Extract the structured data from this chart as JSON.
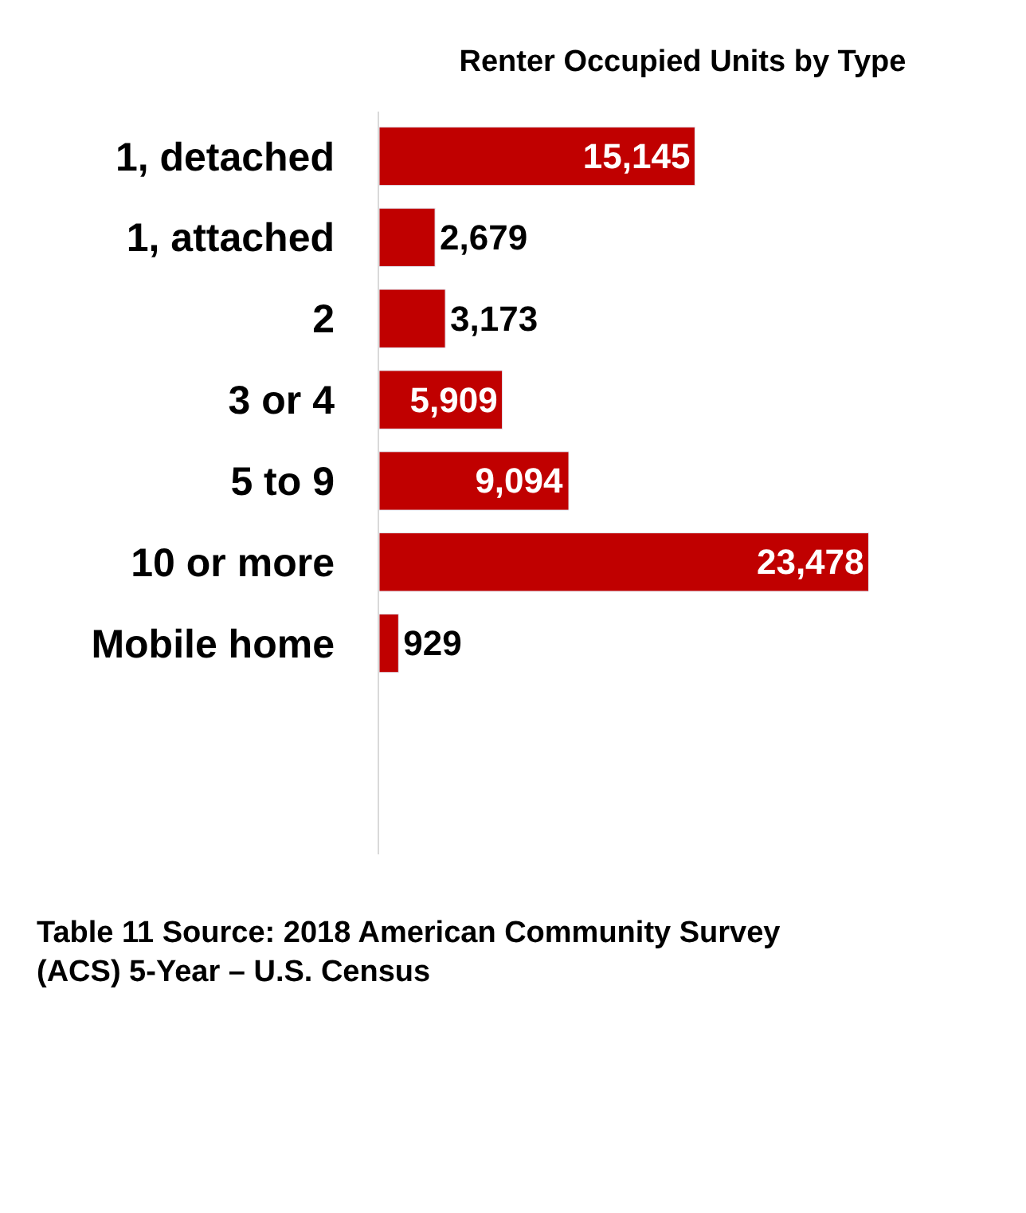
{
  "chart_data": {
    "type": "bar",
    "orientation": "horizontal",
    "title": "Renter Occupied Units by Type",
    "categories": [
      "1, detached",
      "1, attached",
      "2",
      "3 or 4",
      "5 to 9",
      "10 or more",
      "Mobile home"
    ],
    "values": [
      15145,
      2679,
      3173,
      5909,
      9094,
      23478,
      929
    ],
    "value_labels": [
      "15,145",
      "2,679",
      "3,173",
      "5,909",
      "9,094",
      "23,478",
      "929"
    ],
    "color": "#c00000",
    "legend": false,
    "tick_labels": "y",
    "annotations": [
      "Table 11 Source: 2018 American Community Survey (ACS) 5-Year – U.S. Census"
    ]
  }
}
